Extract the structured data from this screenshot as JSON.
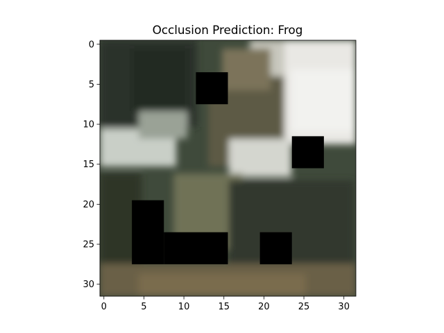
{
  "chart_data": {
    "type": "heatmap",
    "title": "Occlusion Prediction: Frog",
    "xlabel": "",
    "ylabel": "",
    "x_ticks": [
      0,
      5,
      10,
      15,
      20,
      25,
      30
    ],
    "y_ticks": [
      0,
      5,
      10,
      15,
      20,
      25,
      30
    ],
    "xlim": [
      -0.5,
      31.5
    ],
    "ylim": [
      31.5,
      -0.5
    ],
    "image_size": [
      32,
      32
    ],
    "grid": false,
    "occlusion_color": "#000000",
    "occluded_cells": [
      {
        "x": [
          12,
          15
        ],
        "y": [
          4,
          7
        ]
      },
      {
        "x": [
          24,
          27
        ],
        "y": [
          12,
          15
        ]
      },
      {
        "x": [
          4,
          7
        ],
        "y": [
          20,
          27
        ]
      },
      {
        "x": [
          8,
          15
        ],
        "y": [
          24,
          27
        ]
      },
      {
        "x": [
          20,
          23
        ],
        "y": [
          24,
          27
        ]
      }
    ]
  }
}
